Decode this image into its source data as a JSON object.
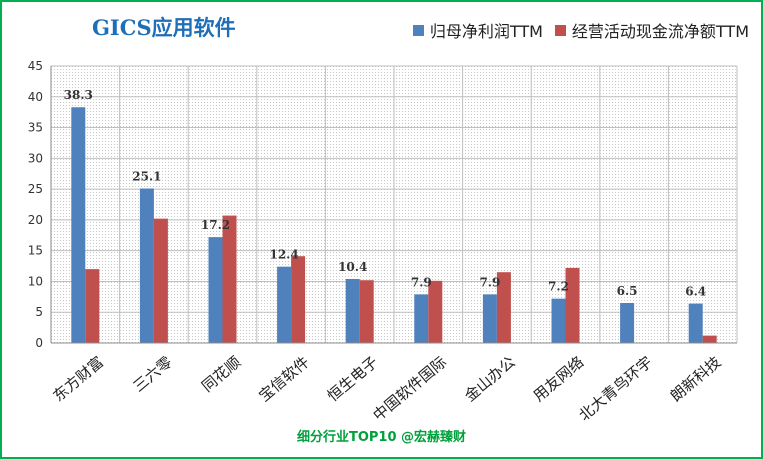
{
  "chart_data": {
    "type": "bar",
    "title": "GICS应用软件",
    "categories": [
      "东方财富",
      "三六零",
      "同花顺",
      "宝信软件",
      "恒生电子",
      "中国软件国际",
      "金山办公",
      "用友网络",
      "北大青鸟环宇",
      "朗新科技"
    ],
    "series": [
      {
        "name": "归母净利润TTM",
        "color": "#4f81bd",
        "values": [
          38.3,
          25.1,
          17.2,
          12.4,
          10.4,
          7.9,
          7.9,
          7.2,
          6.5,
          6.4
        ],
        "labels": [
          "38.3",
          "25.1",
          "17.2",
          "12.4",
          "10.4",
          "7.9",
          "7.9",
          "7.2",
          "6.5",
          "6.4"
        ]
      },
      {
        "name": "经营活动现金流净额TTM",
        "color": "#c0504d",
        "values": [
          12.0,
          20.2,
          20.7,
          14.1,
          10.2,
          10.1,
          11.5,
          12.2,
          0,
          1.2
        ]
      }
    ],
    "ylim": [
      0,
      45
    ],
    "yticks": [
      0,
      5,
      10,
      15,
      20,
      25,
      30,
      35,
      40,
      45
    ],
    "grid": true,
    "legend": "top-right",
    "footer": "细分行业TOP10 @宏赫臻财"
  }
}
